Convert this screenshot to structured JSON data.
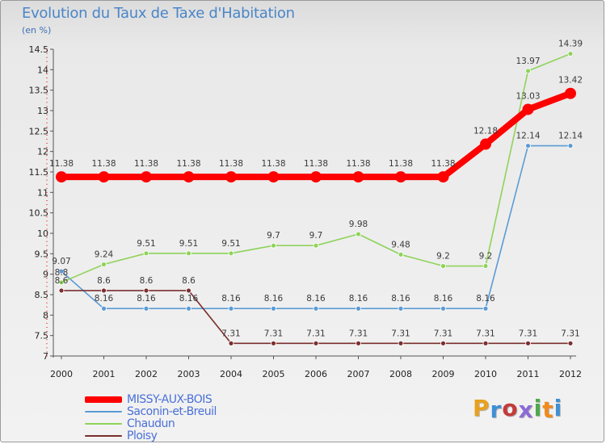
{
  "title": "Evolution du Taux de Taxe d'Habitation",
  "subtitle": "(en %)",
  "logo_text": "Proxiti",
  "logo_letters": [
    {
      "ch": "P",
      "color": "#e8a11c"
    },
    {
      "ch": "r",
      "color": "#3f8fd4"
    },
    {
      "ch": "o",
      "color": "#c33b3b"
    },
    {
      "ch": "x",
      "color": "#8c6bd6"
    },
    {
      "ch": "i",
      "color": "#4ea84e"
    },
    {
      "ch": "t",
      "color": "#f28a1c"
    },
    {
      "ch": "i",
      "color": "#3f8fd4"
    }
  ],
  "chart_data": {
    "type": "line",
    "title": "Evolution du Taux de Taxe d'Habitation",
    "subtitle": "(en %)",
    "xlabel": "",
    "ylabel": "",
    "x": [
      "2000",
      "2001",
      "2002",
      "2003",
      "2004",
      "2005",
      "2006",
      "2007",
      "2008",
      "2009",
      "2010",
      "2011",
      "2012"
    ],
    "ylim": [
      7,
      14.5
    ],
    "y_ticks": [
      "7",
      "7.5",
      "8",
      "8.5",
      "9",
      "9.5",
      "10",
      "10.5",
      "11",
      "11.5",
      "12",
      "12.5",
      "13",
      "13.5",
      "14",
      "14.5"
    ],
    "grid": false,
    "legend_position": "bottom-left",
    "series": [
      {
        "name": "MISSY-AUX-BOIS",
        "color": "#ff0000",
        "emphasis": true,
        "values": [
          11.38,
          11.38,
          11.38,
          11.38,
          11.38,
          11.38,
          11.38,
          11.38,
          11.38,
          11.38,
          12.18,
          13.03,
          13.42
        ],
        "labels": [
          "11.38",
          "11.38",
          "11.38",
          "11.38",
          "11.38",
          "11.38",
          "11.38",
          "11.38",
          "11.38",
          "11.38",
          "12.18",
          "13.03",
          "13.42"
        ]
      },
      {
        "name": "Saconin-et-Breuil",
        "color": "#5b9bd5",
        "emphasis": false,
        "values": [
          9.07,
          8.16,
          8.16,
          8.16,
          8.16,
          8.16,
          8.16,
          8.16,
          8.16,
          8.16,
          8.16,
          12.14,
          12.14
        ],
        "labels": [
          "9.07",
          "8.16",
          "8.16",
          "8.16",
          "8.16",
          "8.16",
          "8.16",
          "8.16",
          "8.16",
          "8.16",
          "8.16",
          "12.14",
          "12.14"
        ]
      },
      {
        "name": "Chaudun",
        "color": "#8fd35a",
        "emphasis": false,
        "values": [
          8.8,
          9.24,
          9.51,
          9.51,
          9.51,
          9.7,
          9.7,
          9.98,
          9.48,
          9.2,
          9.2,
          13.97,
          14.39
        ],
        "labels": [
          "8.8",
          "9.24",
          "9.51",
          "9.51",
          "9.51",
          "9.7",
          "9.7",
          "9.98",
          "9.48",
          "9.2",
          "9.2",
          "13.97",
          "14.39"
        ]
      },
      {
        "name": "Ploisy",
        "color": "#7b2f2f",
        "emphasis": false,
        "values": [
          8.6,
          8.6,
          8.6,
          8.6,
          7.31,
          7.31,
          7.31,
          7.31,
          7.31,
          7.31,
          7.31,
          7.31,
          7.31
        ],
        "labels": [
          "8.6",
          "8.6",
          "8.6",
          "8.6",
          "7.31",
          "7.31",
          "7.31",
          "7.31",
          "7.31",
          "7.31",
          "7.31",
          "7.31",
          "7.31"
        ]
      }
    ]
  }
}
